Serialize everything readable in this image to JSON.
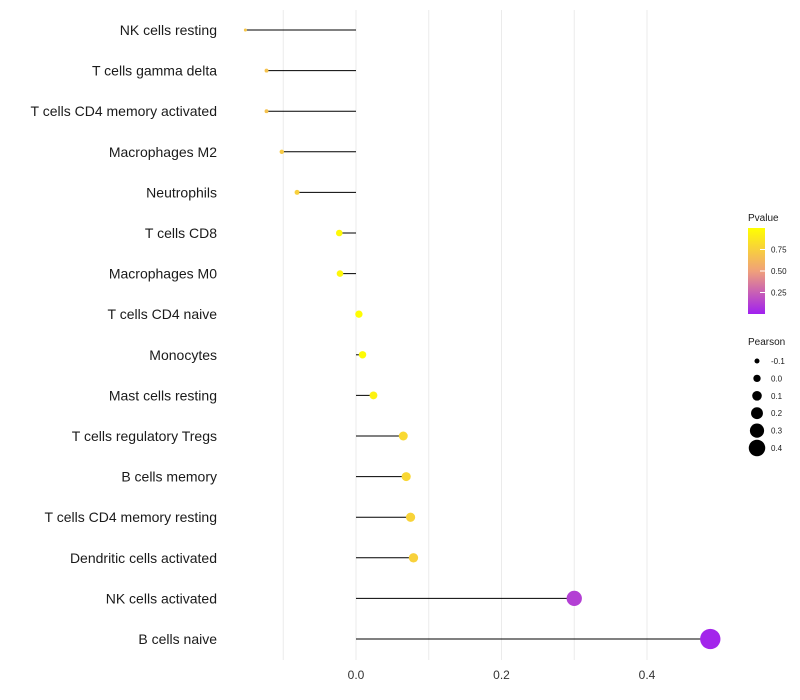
{
  "chart_data": {
    "type": "lollipop",
    "title": "",
    "xlabel": "",
    "ylabel": "",
    "xlim": [
      -0.155,
      0.495
    ],
    "x_ticks": [
      0.0,
      0.2,
      0.4
    ],
    "x_tick_labels": [
      "0.0",
      "0.2",
      "0.4"
    ],
    "grid": true,
    "categories": [
      "NK cells resting",
      "T cells gamma delta",
      "T cells CD4 memory activated",
      "Macrophages M2",
      "Neutrophils",
      "T cells CD8",
      "Macrophages M0",
      "T cells CD4 naive",
      "Monocytes",
      "Mast cells resting",
      "T cells regulatory  Tregs ",
      "B cells memory",
      "T cells CD4 memory resting",
      "Dendritic cells activated",
      "NK cells activated",
      "B cells naive"
    ],
    "values": [
      -0.152,
      -0.123,
      -0.123,
      -0.102,
      -0.081,
      -0.023,
      -0.022,
      0.004,
      0.009,
      0.024,
      0.065,
      0.069,
      0.075,
      0.079,
      0.3,
      0.487
    ],
    "pvalues": [
      0.7,
      0.68,
      0.68,
      0.72,
      0.75,
      0.97,
      0.96,
      0.99,
      0.98,
      0.93,
      0.8,
      0.79,
      0.77,
      0.76,
      0.12,
      0.02
    ],
    "legend_pvalue": {
      "title": "Pvalue",
      "ticks": [
        0.75,
        0.5,
        0.25
      ],
      "tick_labels": [
        "0.75",
        "0.50",
        "0.25"
      ],
      "range": [
        0.0,
        1.0
      ],
      "color_low": "#A020F0",
      "color_mid": "#F0A07A",
      "color_high": "#FFFF00"
    },
    "legend_pearson": {
      "title": "Pearson",
      "values": [
        -0.1,
        0.0,
        0.1,
        0.2,
        0.3,
        0.4
      ],
      "labels": [
        "-0.1",
        "0.0",
        "0.1",
        "0.2",
        "0.3",
        "0.4"
      ]
    }
  }
}
